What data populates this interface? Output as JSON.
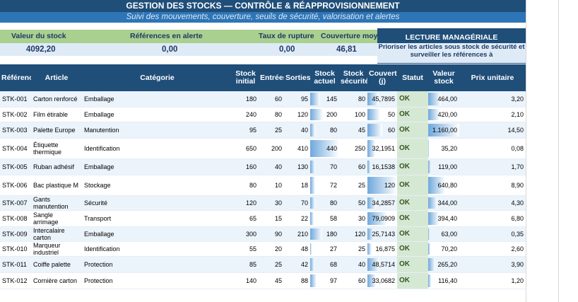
{
  "header": {
    "title": "GESTION DES STOCKS — CONTRÔLE & RÉAPPROVISIONNEMENT",
    "subtitle": "Suivi des mouvements, couverture, seuils de sécurité, valorisation et alertes"
  },
  "kpis": {
    "stock_value_label": "Valeur du stock",
    "stock_value": "4092,20",
    "alert_refs_label": "Références en alerte",
    "alert_refs": "0,00",
    "rupture_label": "Taux de rupture",
    "rupture": "0,00",
    "coverage_label": "Couverture moyenne",
    "coverage": "46,81"
  },
  "management": {
    "title": "LECTURE MANAGÉRIALE",
    "text": "Prioriser les articles sous stock de sécurité et surveiller les références à"
  },
  "columns": {
    "ref": "Référence",
    "article": "Article",
    "category": "Catégorie",
    "stock_initial": "Stock initial",
    "entrees": "Entrées",
    "sorties": "Sorties",
    "stock_actuel": "Stock actuel",
    "stock_secu": "Stock sécurité",
    "couverture": "Couverture (j)",
    "statut": "Statut",
    "valeur": "Valeur stock",
    "prix": "Prix unitaire"
  },
  "rows": [
    {
      "ref": "STK-001",
      "article": "Carton renforcé",
      "category": "Emballage",
      "si": "180",
      "in": "60",
      "out": "95",
      "sa": "145",
      "ss": "80",
      "cov": "45,7895",
      "status": "OK",
      "val": "464,00",
      "prix": "3,20",
      "sa_frac": 0.33,
      "cov_frac": 0.38,
      "val_frac": 0.4
    },
    {
      "ref": "STK-002",
      "article": "Film étirable",
      "category": "Emballage",
      "si": "240",
      "in": "80",
      "out": "120",
      "sa": "200",
      "ss": "100",
      "cov": "50",
      "status": "OK",
      "val": "420,00",
      "prix": "2,10",
      "sa_frac": 0.45,
      "cov_frac": 0.42,
      "val_frac": 0.36
    },
    {
      "ref": "STK-003",
      "article": "Palette Europe",
      "category": "Manutention",
      "si": "95",
      "in": "25",
      "out": "40",
      "sa": "80",
      "ss": "45",
      "cov": "60",
      "status": "OK",
      "val": "1.160,00",
      "prix": "14,50",
      "sa_frac": 0.18,
      "cov_frac": 0.5,
      "val_frac": 1.0
    },
    {
      "ref": "STK-004",
      "article": "Étiquette thermique",
      "category": "Identification",
      "si": "650",
      "in": "200",
      "out": "410",
      "sa": "440",
      "ss": "250",
      "cov": "32,1951",
      "status": "OK",
      "val": "35,20",
      "prix": "0,08",
      "sa_frac": 1.0,
      "cov_frac": 0.27,
      "val_frac": 0.03
    },
    {
      "ref": "STK-005",
      "article": "Ruban adhésif",
      "category": "Emballage",
      "si": "160",
      "in": "40",
      "out": "130",
      "sa": "70",
      "ss": "60",
      "cov": "16,1538",
      "status": "OK",
      "val": "119,00",
      "prix": "1,70",
      "sa_frac": 0.16,
      "cov_frac": 0.13,
      "val_frac": 0.1
    },
    {
      "ref": "STK-006",
      "article": "Bac plastique M",
      "category": "Stockage",
      "si": "80",
      "in": "10",
      "out": "18",
      "sa": "72",
      "ss": "25",
      "cov": "120",
      "status": "OK",
      "val": "640,80",
      "prix": "8,90",
      "sa_frac": 0.16,
      "cov_frac": 1.0,
      "val_frac": 0.55
    },
    {
      "ref": "STK-007",
      "article": "Gants manutention",
      "category": "Sécurité",
      "si": "120",
      "in": "30",
      "out": "70",
      "sa": "80",
      "ss": "50",
      "cov": "34,2857",
      "status": "OK",
      "val": "344,00",
      "prix": "4,30",
      "sa_frac": 0.18,
      "cov_frac": 0.29,
      "val_frac": 0.3
    },
    {
      "ref": "STK-008",
      "article": "Sangle arrimage",
      "category": "Transport",
      "si": "65",
      "in": "15",
      "out": "22",
      "sa": "58",
      "ss": "30",
      "cov": "79,0909",
      "status": "OK",
      "val": "394,40",
      "prix": "6,80",
      "sa_frac": 0.13,
      "cov_frac": 0.66,
      "val_frac": 0.34
    },
    {
      "ref": "STK-009",
      "article": "Intercalaire carton",
      "category": "Emballage",
      "si": "300",
      "in": "90",
      "out": "210",
      "sa": "180",
      "ss": "120",
      "cov": "25,7143",
      "status": "OK",
      "val": "63,00",
      "prix": "0,35",
      "sa_frac": 0.41,
      "cov_frac": 0.21,
      "val_frac": 0.05
    },
    {
      "ref": "STK-010",
      "article": "Marqueur industriel",
      "category": "Identification",
      "si": "55",
      "in": "20",
      "out": "48",
      "sa": "27",
      "ss": "25",
      "cov": "16,875",
      "status": "OK",
      "val": "70,20",
      "prix": "2,60",
      "sa_frac": 0.06,
      "cov_frac": 0.14,
      "val_frac": 0.06
    },
    {
      "ref": "STK-011",
      "article": "Coiffe palette",
      "category": "Protection",
      "si": "85",
      "in": "25",
      "out": "42",
      "sa": "68",
      "ss": "40",
      "cov": "48,5714",
      "status": "OK",
      "val": "265,20",
      "prix": "3,90",
      "sa_frac": 0.15,
      "cov_frac": 0.4,
      "val_frac": 0.23
    },
    {
      "ref": "STK-012",
      "article": "Cornière carton",
      "category": "Protection",
      "si": "140",
      "in": "45",
      "out": "88",
      "sa": "97",
      "ss": "60",
      "cov": "33,0682",
      "status": "OK",
      "val": "116,40",
      "prix": "1,20",
      "sa_frac": 0.22,
      "cov_frac": 0.28,
      "val_frac": 0.1
    }
  ]
}
